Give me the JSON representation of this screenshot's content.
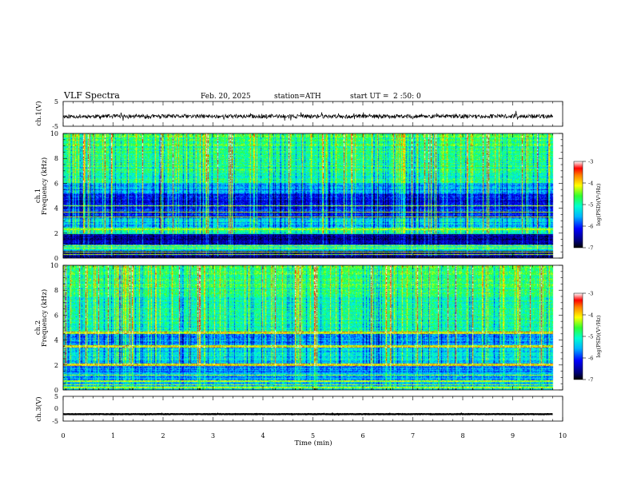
{
  "header": {
    "title": "VLF Spectra",
    "date": "Feb. 20, 2025",
    "station": "station=ATH",
    "start_label": "start UT =",
    "start_time": "2 :50: 0"
  },
  "chart_data": [
    {
      "type": "line",
      "name": "ch1-waveform",
      "ylabel": "ch.1(V)",
      "ylim": [
        -5,
        5
      ],
      "yticks": [
        "5",
        "-5"
      ],
      "xlim": [
        0,
        10
      ],
      "baseline_v": -1.0,
      "noise_v": 0.8
    },
    {
      "type": "heatmap",
      "name": "ch1-spectrogram",
      "ylabel_top": "ch.1",
      "ylabel": "Frequency (kHz)",
      "ylim": [
        0,
        10
      ],
      "yticks": [
        "0",
        "2",
        "4",
        "6",
        "8",
        "10"
      ],
      "xlim": [
        0,
        10
      ],
      "data_end_min": 9.8,
      "background_logpsd": -5.0,
      "bands_logpsd": [
        {
          "f": [
            0.0,
            0.6
          ],
          "v": -6.6
        },
        {
          "f": [
            0.6,
            1.1
          ],
          "v": -5.3
        },
        {
          "f": [
            1.1,
            1.9
          ],
          "v": -6.6
        },
        {
          "f": [
            1.9,
            2.5
          ],
          "v": -5.0
        },
        {
          "f": [
            2.5,
            3.2
          ],
          "v": -5.4
        },
        {
          "f": [
            3.2,
            5.1
          ],
          "v": -6.1
        },
        {
          "f": [
            5.1,
            6.0
          ],
          "v": -5.6
        }
      ],
      "lines_khz": [
        0.3,
        0.5,
        0.8,
        1.0,
        2.3,
        3.3,
        3.7,
        4.2
      ],
      "colorbar": {
        "label": "log(PSD)(V²/Hz)",
        "range": [
          -7,
          -3
        ],
        "ticks": [
          "-3",
          "-4",
          "-5",
          "-6",
          "-7"
        ]
      }
    },
    {
      "type": "heatmap",
      "name": "ch2-spectrogram",
      "ylabel_top": "ch.2",
      "ylabel": "Frequency (kHz)",
      "ylim": [
        0,
        10
      ],
      "yticks": [
        "0",
        "2",
        "4",
        "6",
        "8",
        "10"
      ],
      "xlim": [
        0,
        10
      ],
      "data_end_min": 9.8,
      "background_logpsd": -5.0,
      "bands_logpsd": [
        {
          "f": [
            0.0,
            0.5
          ],
          "v": -5.5
        },
        {
          "f": [
            0.5,
            1.4
          ],
          "v": -5.6
        },
        {
          "f": [
            1.4,
            1.9
          ],
          "v": -5.7
        },
        {
          "f": [
            1.9,
            2.1
          ],
          "v": -3.9
        },
        {
          "f": [
            2.1,
            3.4
          ],
          "v": -5.3
        },
        {
          "f": [
            3.4,
            3.6
          ],
          "v": -4.0
        },
        {
          "f": [
            3.6,
            4.5
          ],
          "v": -5.6
        },
        {
          "f": [
            4.5,
            4.7
          ],
          "v": -3.9
        }
      ],
      "lines_khz": [
        0.2,
        0.4,
        0.7,
        1.2,
        2.0,
        3.5,
        4.6
      ],
      "colorbar": {
        "label": "log(PSD)(V²/Hz)",
        "range": [
          -7,
          -3
        ],
        "ticks": [
          "-3",
          "-4",
          "-5",
          "-6",
          "-7"
        ]
      }
    },
    {
      "type": "line",
      "name": "ch3-waveform",
      "ylabel": "ch.3(V)",
      "ylim": [
        -5,
        5
      ],
      "yticks": [
        "5",
        "0",
        "-5"
      ],
      "xlim": [
        0,
        10
      ],
      "xlabel": "Time (min)",
      "xticks": [
        "0",
        "1",
        "2",
        "3",
        "4",
        "5",
        "6",
        "7",
        "8",
        "9",
        "10"
      ],
      "baseline_v": -2.2,
      "noise_v": 0.25
    }
  ]
}
